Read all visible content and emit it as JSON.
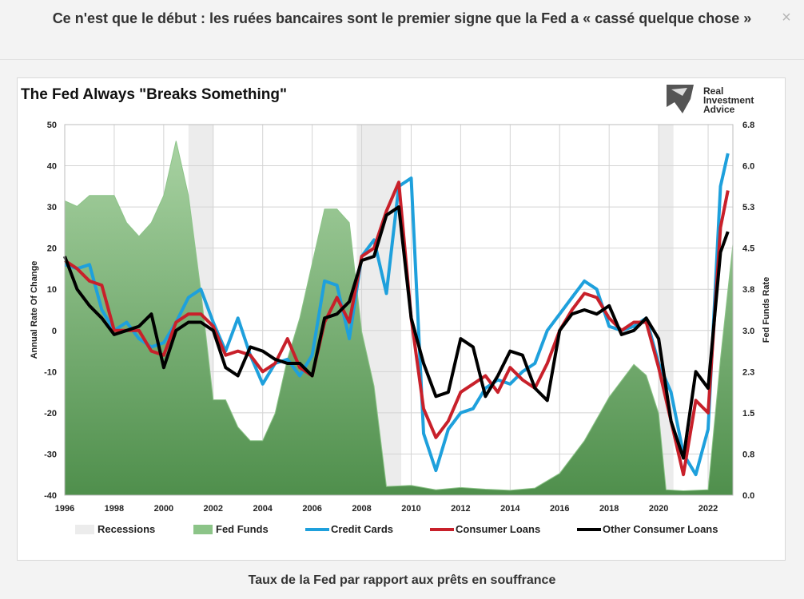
{
  "header": {
    "title": "Ce n'est que le début : les ruées bancaires sont le premier signe que la Fed a « cassé quelque chose »",
    "close_label": "×"
  },
  "caption": "Taux de la Fed par rapport aux prêts en souffrance",
  "logo": {
    "line1": "Real",
    "line2": "Investment",
    "line3": "Advice"
  },
  "colors": {
    "recession": "#ececec",
    "fed_funds": "#6fae6c",
    "credit_cards": "#1ea0dc",
    "consumer_loans": "#c8202a",
    "other_consumer_loans": "#000000"
  },
  "chart_data": {
    "type": "line",
    "title": "The Fed Always \"Breaks Something\"",
    "ylabel": "Annual Rate Of Change",
    "y2label": "Fed Funds Rate",
    "ylim": [
      -40,
      50
    ],
    "y2lim": [
      0,
      6.8
    ],
    "xlim": [
      1996,
      2023
    ],
    "x_ticks": [
      "1996",
      "1998",
      "2000",
      "2002",
      "2004",
      "2006",
      "2008",
      "2010",
      "2012",
      "2014",
      "2016",
      "2018",
      "2020",
      "2022"
    ],
    "y_ticks": [
      "50",
      "40",
      "30",
      "20",
      "10",
      "0",
      "-10",
      "-20",
      "-30",
      "-40"
    ],
    "y2_ticks": [
      "6.8",
      "6.0",
      "5.3",
      "4.5",
      "3.8",
      "3.0",
      "2.3",
      "1.5",
      "0.8",
      "0.0"
    ],
    "grid": true,
    "legend": [
      "Recessions",
      "Fed Funds",
      "Credit Cards",
      "Consumer Loans",
      "Other Consumer Loans"
    ],
    "legend_position": "bottom",
    "recessions": [
      [
        2001.0,
        2002.0
      ],
      [
        2007.8,
        2009.6
      ],
      [
        2020.0,
        2020.6
      ]
    ],
    "series": [
      {
        "name": "Fed Funds",
        "x": [
          1996,
          1996.5,
          1997,
          1997.5,
          1998,
          1998.5,
          1999,
          1999.5,
          2000,
          2000.5,
          2001,
          2001.5,
          2002,
          2002.5,
          2003,
          2003.5,
          2004,
          2004.5,
          2005,
          2005.5,
          2006,
          2006.5,
          2007,
          2007.5,
          2008,
          2008.5,
          2009,
          2010,
          2011,
          2012,
          2013,
          2014,
          2015,
          2016,
          2017,
          2018,
          2019,
          2019.5,
          2020,
          2020.3,
          2021,
          2022,
          2022.5,
          2023
        ],
        "values": [
          5.4,
          5.3,
          5.5,
          5.5,
          5.5,
          5.0,
          4.75,
          5.0,
          5.5,
          6.5,
          5.5,
          3.75,
          1.75,
          1.75,
          1.25,
          1.0,
          1.0,
          1.5,
          2.5,
          3.25,
          4.25,
          5.25,
          5.25,
          5.0,
          3.0,
          2.0,
          0.16,
          0.18,
          0.1,
          0.14,
          0.11,
          0.09,
          0.13,
          0.4,
          1.0,
          1.8,
          2.4,
          2.2,
          1.5,
          0.1,
          0.08,
          0.1,
          2.5,
          4.6
        ]
      },
      {
        "name": "Credit Cards",
        "x": [
          1996,
          1996.5,
          1997,
          1997.5,
          1998,
          1998.5,
          1999,
          1999.5,
          2000,
          2000.5,
          2001,
          2001.5,
          2002,
          2002.5,
          2003,
          2003.5,
          2004,
          2004.5,
          2005,
          2005.5,
          2006,
          2006.5,
          2007,
          2007.5,
          2008,
          2008.5,
          2009,
          2009.5,
          2010,
          2010.5,
          2011,
          2011.5,
          2012,
          2012.5,
          2013,
          2013.5,
          2014,
          2014.5,
          2015,
          2015.5,
          2016,
          2016.5,
          2017,
          2017.5,
          2018,
          2018.5,
          2019,
          2019.5,
          2020,
          2020.5,
          2021,
          2021.5,
          2022,
          2022.5,
          2022.8
        ],
        "values": [
          16,
          15,
          16,
          5,
          0,
          2,
          -2,
          -4,
          -3,
          2,
          8,
          10,
          2,
          -5,
          3,
          -6,
          -13,
          -8,
          -7,
          -11,
          -6,
          12,
          11,
          -2,
          18,
          22,
          9,
          35,
          37,
          -25,
          -34,
          -24,
          -20,
          -19,
          -14,
          -12,
          -13,
          -10,
          -8,
          0,
          4,
          8,
          12,
          10,
          1,
          0,
          1,
          3,
          -8,
          -15,
          -30,
          -35,
          -24,
          35,
          43
        ]
      },
      {
        "name": "Consumer Loans",
        "x": [
          1996,
          1996.5,
          1997,
          1997.5,
          1998,
          1998.5,
          1999,
          1999.5,
          2000,
          2000.5,
          2001,
          2001.5,
          2002,
          2002.5,
          2003,
          2003.5,
          2004,
          2004.5,
          2005,
          2005.5,
          2006,
          2006.5,
          2007,
          2007.5,
          2008,
          2008.5,
          2009,
          2009.5,
          2010,
          2010.5,
          2011,
          2011.5,
          2012,
          2012.5,
          2013,
          2013.5,
          2014,
          2014.5,
          2015,
          2015.5,
          2016,
          2016.5,
          2017,
          2017.5,
          2018,
          2018.5,
          2019,
          2019.5,
          2020,
          2020.5,
          2021,
          2021.5,
          2022,
          2022.5,
          2022.8
        ],
        "values": [
          17,
          15,
          12,
          11,
          0,
          0,
          0,
          -5,
          -6,
          2,
          4,
          4,
          1,
          -6,
          -5,
          -6,
          -10,
          -8,
          -2,
          -9,
          -11,
          2,
          8,
          2,
          18,
          20,
          29,
          36,
          3,
          -19,
          -26,
          -22,
          -15,
          -13,
          -11,
          -15,
          -9,
          -12,
          -14,
          -8,
          0,
          5,
          9,
          8,
          3,
          0,
          2,
          2,
          -9,
          -22,
          -35,
          -17,
          -20,
          25,
          34
        ]
      },
      {
        "name": "Other Consumer Loans",
        "x": [
          1996,
          1996.5,
          1997,
          1997.5,
          1998,
          1998.5,
          1999,
          1999.5,
          2000,
          2000.5,
          2001,
          2001.5,
          2002,
          2002.5,
          2003,
          2003.5,
          2004,
          2004.5,
          2005,
          2005.5,
          2006,
          2006.5,
          2007,
          2007.5,
          2008,
          2008.5,
          2009,
          2009.5,
          2010,
          2010.5,
          2011,
          2011.5,
          2012,
          2012.5,
          2013,
          2013.5,
          2014,
          2014.5,
          2015,
          2015.5,
          2016,
          2016.5,
          2017,
          2017.5,
          2018,
          2018.5,
          2019,
          2019.5,
          2020,
          2020.5,
          2021,
          2021.5,
          2022,
          2022.5,
          2022.8
        ],
        "values": [
          18,
          10,
          6,
          3,
          -1,
          0,
          1,
          4,
          -9,
          0,
          2,
          2,
          0,
          -9,
          -11,
          -4,
          -5,
          -7,
          -8,
          -8,
          -11,
          3,
          4,
          7,
          17,
          18,
          28,
          30,
          3,
          -8,
          -16,
          -15,
          -2,
          -4,
          -16,
          -11,
          -5,
          -6,
          -14,
          -17,
          0,
          4,
          5,
          4,
          6,
          -1,
          0,
          3,
          -2,
          -22,
          -31,
          -10,
          -14,
          19,
          24
        ]
      }
    ]
  }
}
